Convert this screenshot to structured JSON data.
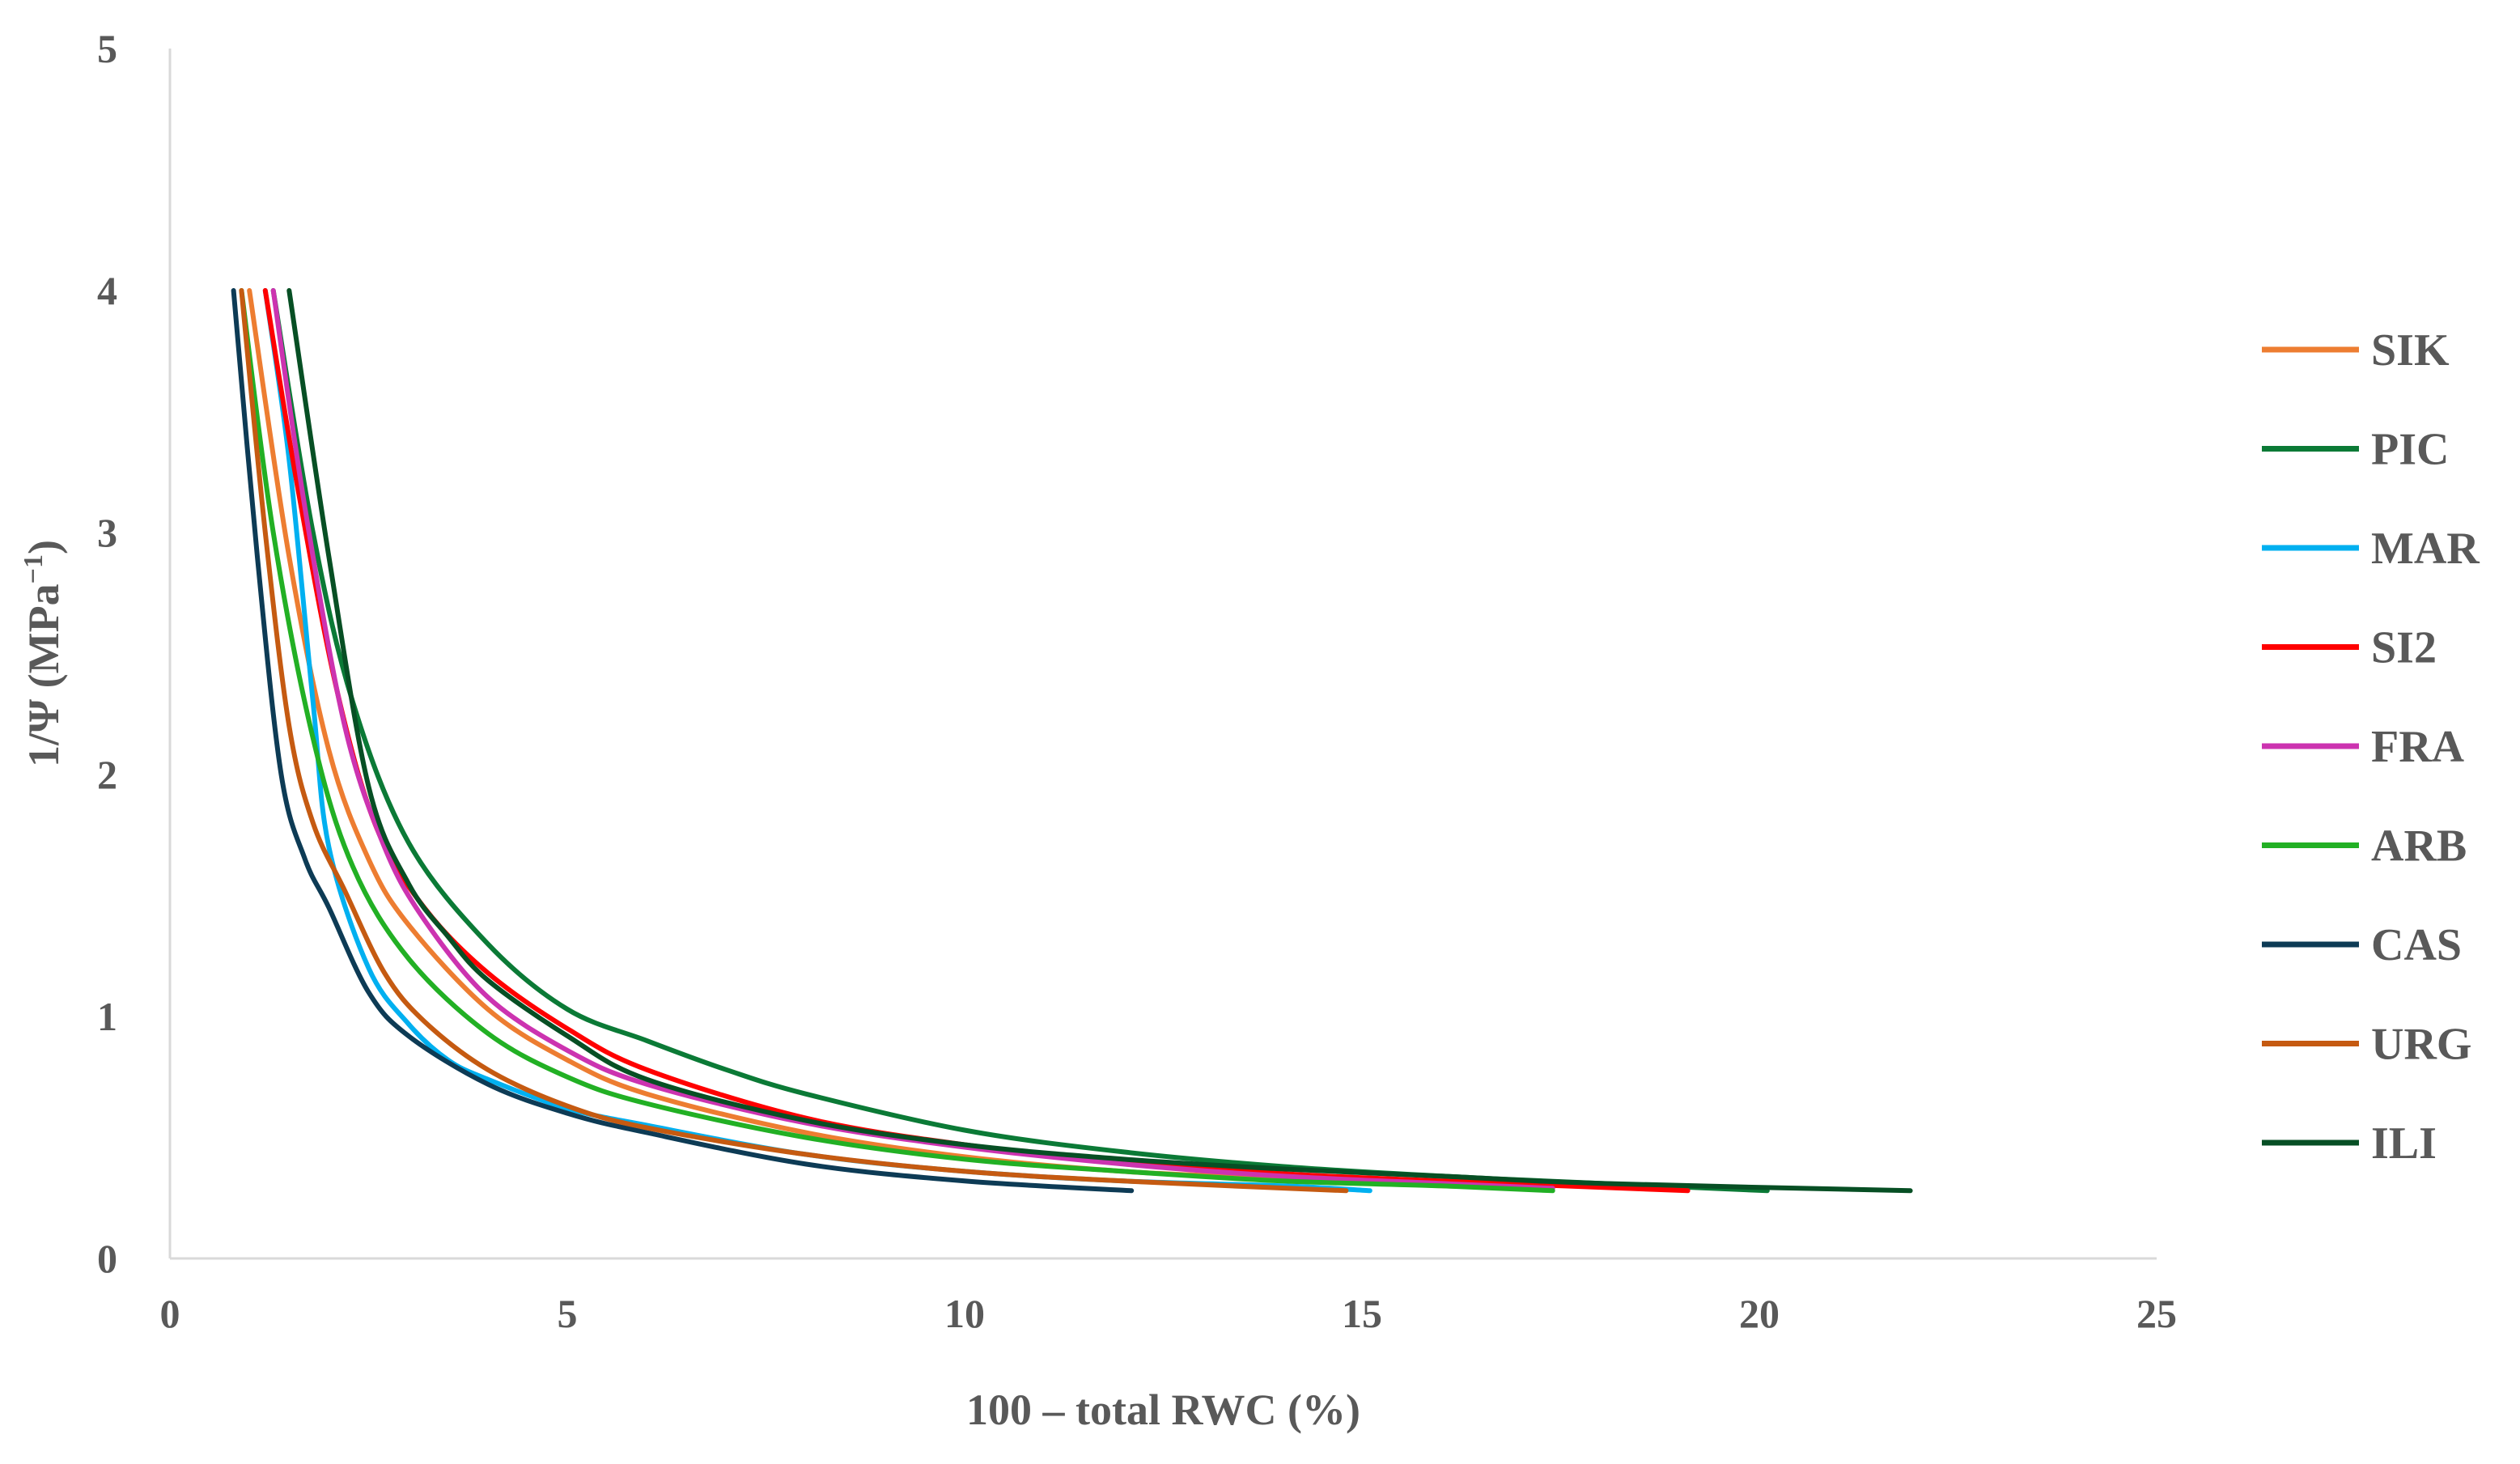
{
  "chart_data": {
    "type": "line",
    "title": "",
    "xlabel": "100 – total RWC (%)",
    "ylabel_main": "1/Ψ (MPa",
    "ylabel_sup": "−1",
    "ylabel_close": ")",
    "xlim": [
      0,
      25
    ],
    "ylim": [
      0,
      5
    ],
    "xticks": [
      0,
      5,
      10,
      15,
      20,
      25
    ],
    "yticks": [
      0,
      1,
      2,
      3,
      4,
      5
    ],
    "grid": false,
    "legend_position": "right",
    "series": [
      {
        "name": "SIK",
        "color": "#ED7D31",
        "x": [
          1.0,
          1.5,
          2.0,
          2.5,
          3,
          4,
          5,
          6,
          8,
          10,
          12,
          14,
          16,
          17.4
        ],
        "y": [
          4.0,
          2.9,
          2.1,
          1.65,
          1.38,
          1.03,
          0.82,
          0.68,
          0.52,
          0.42,
          0.36,
          0.33,
          0.3,
          0.29
        ]
      },
      {
        "name": "PIC",
        "color": "#0B7A36",
        "x": [
          1.3,
          1.8,
          2.3,
          3,
          4,
          5,
          6,
          7,
          8,
          10,
          12,
          14,
          16,
          18,
          20.1
        ],
        "y": [
          4.0,
          3.0,
          2.3,
          1.72,
          1.3,
          1.03,
          0.9,
          0.78,
          0.68,
          0.53,
          0.44,
          0.38,
          0.34,
          0.31,
          0.28
        ]
      },
      {
        "name": "MAR",
        "color": "#00B0F0",
        "x": [
          1.2,
          1.5,
          1.8,
          2.0,
          2.5,
          3,
          3.5,
          4,
          5,
          6,
          8,
          10,
          12,
          14,
          15.1
        ],
        "y": [
          4.0,
          3.3,
          2.3,
          1.7,
          1.2,
          0.97,
          0.82,
          0.74,
          0.62,
          0.55,
          0.43,
          0.36,
          0.32,
          0.3,
          0.28
        ]
      },
      {
        "name": "SI2",
        "color": "#FF0000",
        "x": [
          1.2,
          1.6,
          2.1,
          2.6,
          3.2,
          4,
          5,
          6,
          8,
          10,
          12,
          14,
          16,
          19.1
        ],
        "y": [
          4.0,
          3.2,
          2.35,
          1.78,
          1.45,
          1.18,
          0.95,
          0.78,
          0.58,
          0.47,
          0.4,
          0.35,
          0.32,
          0.28
        ]
      },
      {
        "name": "FRA",
        "color": "#CC33B0",
        "x": [
          1.3,
          1.7,
          2.2,
          2.7,
          3.2,
          4,
          5,
          6,
          8,
          10,
          12,
          14,
          16,
          17.4
        ],
        "y": [
          4.0,
          3.1,
          2.2,
          1.7,
          1.4,
          1.08,
          0.86,
          0.72,
          0.56,
          0.46,
          0.39,
          0.34,
          0.31,
          0.29
        ]
      },
      {
        "name": "ARB",
        "color": "#22B024",
        "x": [
          0.9,
          1.3,
          1.8,
          2.3,
          3,
          4,
          5,
          6,
          8,
          10,
          12,
          14,
          16,
          17.4
        ],
        "y": [
          4.0,
          3.0,
          2.15,
          1.62,
          1.24,
          0.93,
          0.75,
          0.64,
          0.5,
          0.41,
          0.36,
          0.32,
          0.3,
          0.28
        ]
      },
      {
        "name": "CAS",
        "color": "#0D3B55",
        "x": [
          0.8,
          1.1,
          1.4,
          1.7,
          2.0,
          2.5,
          3,
          4,
          5,
          6,
          8,
          10,
          12.1
        ],
        "y": [
          4.0,
          2.9,
          2.0,
          1.65,
          1.45,
          1.1,
          0.92,
          0.72,
          0.6,
          0.52,
          0.39,
          0.32,
          0.28
        ]
      },
      {
        "name": "URG",
        "color": "#C55A11",
        "x": [
          0.9,
          1.2,
          1.5,
          1.8,
          2.2,
          2.7,
          3.2,
          4,
          5,
          6,
          8,
          10,
          12,
          14.8
        ],
        "y": [
          4.0,
          3.0,
          2.2,
          1.8,
          1.52,
          1.18,
          0.98,
          0.78,
          0.63,
          0.54,
          0.43,
          0.36,
          0.32,
          0.28
        ]
      },
      {
        "name": "ILI",
        "color": "#074F24",
        "x": [
          1.5,
          2.0,
          2.5,
          3,
          3.5,
          4,
          5,
          6,
          8,
          10,
          12,
          14,
          16,
          18,
          21.9
        ],
        "y": [
          4.0,
          2.9,
          1.95,
          1.55,
          1.33,
          1.15,
          0.92,
          0.74,
          0.57,
          0.47,
          0.41,
          0.37,
          0.34,
          0.31,
          0.28
        ]
      }
    ]
  }
}
